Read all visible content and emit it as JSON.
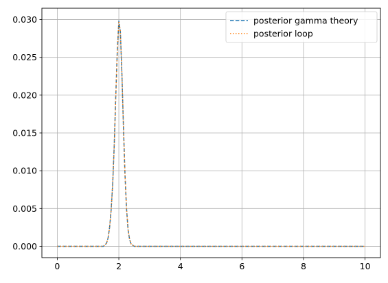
{
  "chart_data": {
    "type": "line",
    "title": "",
    "xlabel": "",
    "ylabel": "",
    "xlim": [
      -0.5,
      10.5
    ],
    "ylim": [
      -0.0015,
      0.0315
    ],
    "xticks": [
      0,
      2,
      4,
      6,
      8,
      10
    ],
    "xtick_labels": [
      "0",
      "2",
      "4",
      "6",
      "8",
      "10"
    ],
    "yticks": [
      0.0,
      0.005,
      0.01,
      0.015,
      0.02,
      0.025,
      0.03
    ],
    "ytick_labels": [
      "0.000",
      "0.005",
      "0.010",
      "0.015",
      "0.020",
      "0.025",
      "0.030"
    ],
    "grid": true,
    "legend_position": "top-right",
    "series": [
      {
        "name": "posterior gamma theory",
        "color": "#1f77b4",
        "linestyle": "dashed",
        "x": [
          0,
          1.0,
          1.5,
          1.6,
          1.65,
          1.7,
          1.75,
          1.8,
          1.85,
          1.9,
          1.95,
          2.0,
          2.05,
          2.1,
          2.15,
          2.2,
          2.25,
          2.3,
          2.35,
          2.4,
          2.5,
          3.0,
          10
        ],
        "y": [
          0.0,
          0.0,
          0.0,
          0.0004,
          0.0011,
          0.0025,
          0.0048,
          0.0082,
          0.0133,
          0.0198,
          0.0258,
          0.0298,
          0.0284,
          0.0228,
          0.0158,
          0.0095,
          0.005,
          0.0022,
          0.0009,
          0.0003,
          0.0,
          0.0,
          0.0
        ]
      },
      {
        "name": "posterior loop",
        "color": "#ff7f0e",
        "linestyle": "dotted",
        "x": [
          0,
          1.0,
          1.5,
          1.6,
          1.65,
          1.7,
          1.75,
          1.8,
          1.85,
          1.9,
          1.95,
          2.0,
          2.05,
          2.1,
          2.15,
          2.2,
          2.25,
          2.3,
          2.35,
          2.4,
          2.5,
          3.0,
          10
        ],
        "y": [
          0.0,
          0.0,
          0.0,
          0.0004,
          0.0011,
          0.0025,
          0.0048,
          0.0082,
          0.0133,
          0.0198,
          0.0258,
          0.0298,
          0.0284,
          0.0228,
          0.0158,
          0.0095,
          0.005,
          0.0022,
          0.0009,
          0.0003,
          0.0,
          0.0,
          0.0
        ]
      }
    ]
  }
}
